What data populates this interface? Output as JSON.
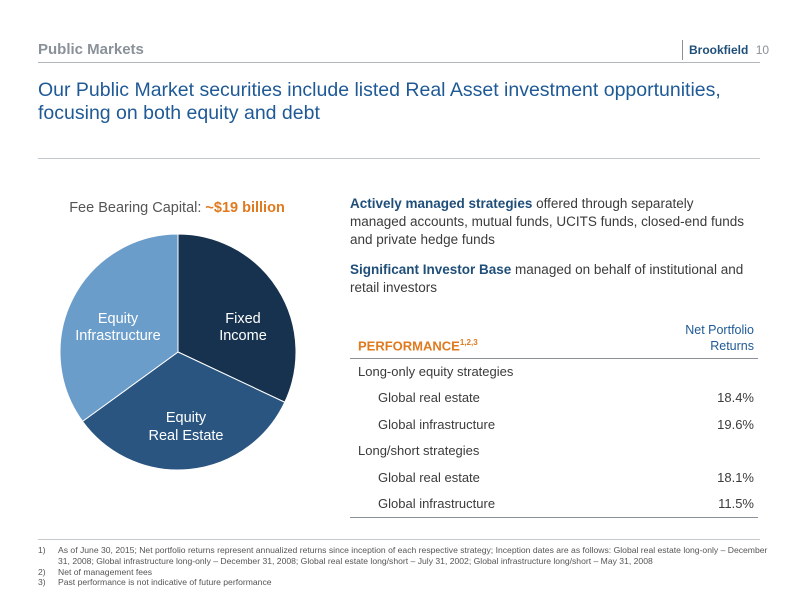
{
  "header": {
    "section_title": "Public Markets",
    "brand": "Brookfield",
    "page_number": "10"
  },
  "headline": "Our Public Market securities include listed Real Asset investment opportunities, focusing on both equity and debt",
  "chart": {
    "caption_prefix": "Fee Bearing Capital: ",
    "caption_amount": "~$19 billion",
    "labels": {
      "fixed_income_1": "Fixed",
      "fixed_income_2": "Income",
      "equity_real_estate_1": "Equity",
      "equity_real_estate_2": "Real Estate",
      "equity_infrastructure_1": "Equity",
      "equity_infrastructure_2": "Infrastructure"
    }
  },
  "chart_data": {
    "type": "pie",
    "categories": [
      "Fixed Income",
      "Equity Real Estate",
      "Equity Infrastructure"
    ],
    "values": [
      32,
      33,
      35
    ],
    "colors": [
      "#17324f",
      "#2a5580",
      "#6b9dcb"
    ]
  },
  "bullets": [
    {
      "bold": "Actively managed strategies",
      "text": " offered through separately managed accounts, mutual funds, UCITS funds, closed-end funds and private hedge funds"
    },
    {
      "bold": "Significant Investor Base",
      "text": " managed on behalf of institutional and retail investors"
    }
  ],
  "performance": {
    "title": "PERFORMANCE",
    "title_sup": "1,2,3",
    "column_header_1": "Net Portfolio",
    "column_header_2": "Returns",
    "rows": [
      {
        "label": "Long-only equity strategies",
        "value": ""
      },
      {
        "label": "Global real estate",
        "value": "18.4%"
      },
      {
        "label": "Global infrastructure",
        "value": "19.6%"
      },
      {
        "label": "Long/short strategies",
        "value": ""
      },
      {
        "label": "Global real estate",
        "value": "18.1%"
      },
      {
        "label": "Global infrastructure",
        "value": "11.5%"
      }
    ]
  },
  "footnotes": [
    {
      "num": "1)",
      "text": "As of June 30, 2015; Net portfolio returns represent annualized returns since inception of each respective strategy; Inception dates are as follows: Global real estate long-only – December 31, 2008; Global infrastructure long-only – December 31, 2008; Global real estate long/short – July 31, 2002; Global infrastructure long/short – May 31, 2008"
    },
    {
      "num": "2)",
      "text": "Net of management fees"
    },
    {
      "num": "3)",
      "text": "Past performance is not indicative of future performance"
    }
  ]
}
